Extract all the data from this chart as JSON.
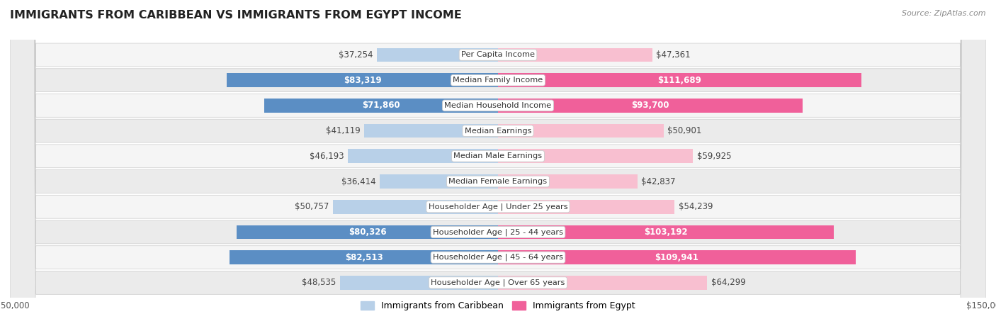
{
  "title": "IMMIGRANTS FROM CARIBBEAN VS IMMIGRANTS FROM EGYPT INCOME",
  "source": "Source: ZipAtlas.com",
  "categories": [
    "Per Capita Income",
    "Median Family Income",
    "Median Household Income",
    "Median Earnings",
    "Median Male Earnings",
    "Median Female Earnings",
    "Householder Age | Under 25 years",
    "Householder Age | 25 - 44 years",
    "Householder Age | 45 - 64 years",
    "Householder Age | Over 65 years"
  ],
  "caribbean_values": [
    37254,
    83319,
    71860,
    41119,
    46193,
    36414,
    50757,
    80326,
    82513,
    48535
  ],
  "egypt_values": [
    47361,
    111689,
    93700,
    50901,
    59925,
    42837,
    54239,
    103192,
    109941,
    64299
  ],
  "caribbean_labels": [
    "$37,254",
    "$83,319",
    "$71,860",
    "$41,119",
    "$46,193",
    "$36,414",
    "$50,757",
    "$80,326",
    "$82,513",
    "$48,535"
  ],
  "egypt_labels": [
    "$47,361",
    "$111,689",
    "$93,700",
    "$50,901",
    "$59,925",
    "$42,837",
    "$54,239",
    "$103,192",
    "$109,941",
    "$64,299"
  ],
  "caribbean_color_light": "#b8d0e8",
  "caribbean_color_dark": "#5b8ec4",
  "egypt_color_light": "#f8bfd0",
  "egypt_color_dark": "#f0609a",
  "dark_text_color": "#444444",
  "white_text_color": "#ffffff",
  "axis_max": 150000,
  "background_color": "#ffffff",
  "row_bg_even": "#f5f5f5",
  "row_bg_odd": "#ebebeb",
  "legend_caribbean": "Immigrants from Caribbean",
  "legend_egypt": "Immigrants from Egypt",
  "white_inside_threshold": 70000
}
